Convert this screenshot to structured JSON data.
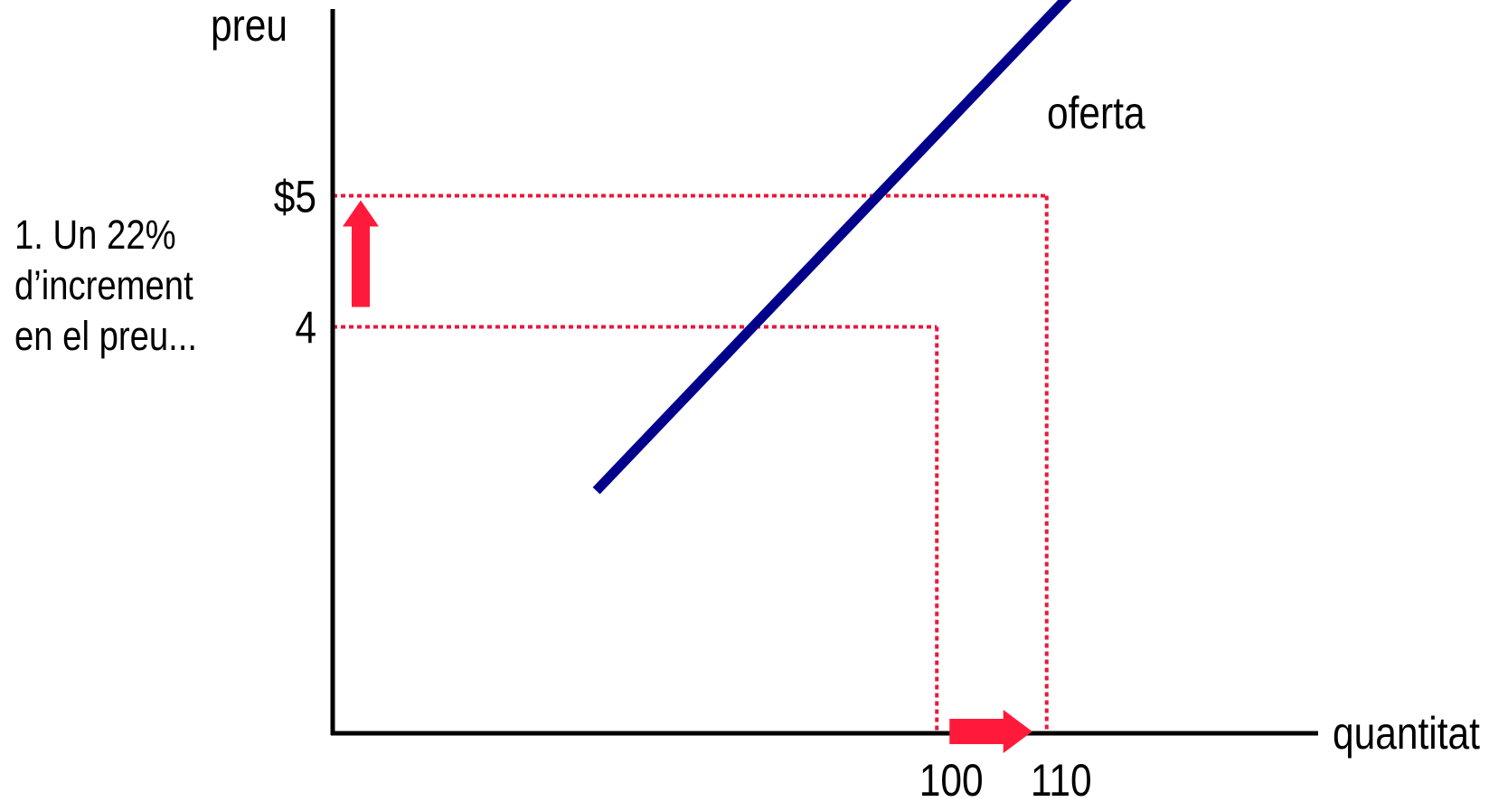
{
  "chart_data": {
    "type": "line",
    "xlabel": "quantitat",
    "ylabel": "preu",
    "series": [
      {
        "name": "oferta",
        "color": "#00008b",
        "x": [
          69,
          118
        ],
        "y": [
          2.75,
          7.05
        ]
      }
    ],
    "x_ticks": [
      {
        "value": 100,
        "label": "100"
      },
      {
        "value": 110,
        "label": "110"
      }
    ],
    "y_ticks": [
      {
        "value": 4,
        "label": "4"
      },
      {
        "value": 5,
        "label": "$5"
      }
    ],
    "guide_points": [
      {
        "x": 100,
        "y": 4
      },
      {
        "x": 110,
        "y": 5
      }
    ],
    "guide_color": "#e8193c",
    "arrow_color": "#ff1a3c",
    "annotation": {
      "lines": [
        "1. Un 22%",
        "d’increment",
        "en el preu..."
      ]
    },
    "grid": false,
    "legend": "none"
  }
}
